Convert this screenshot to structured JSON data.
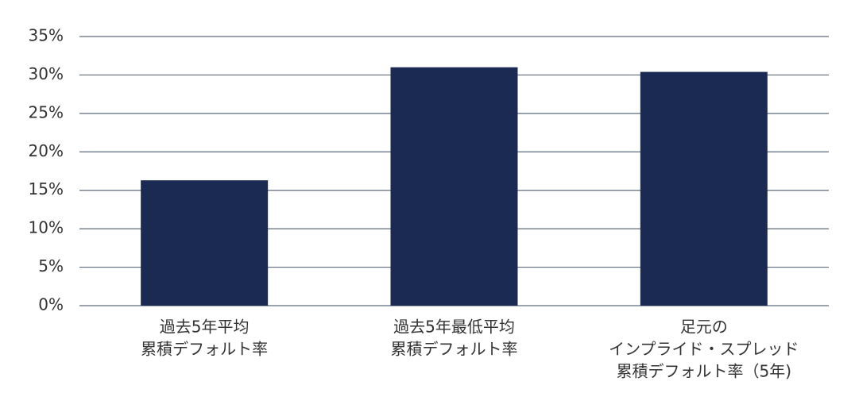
{
  "chart_data": {
    "type": "bar",
    "categories": [
      [
        "過去5年平均",
        "累積デフォルト率"
      ],
      [
        "過去5年最低平均",
        "累積デフォルト率"
      ],
      [
        "足元の",
        "インプライド・スプレッド",
        "累積デフォルト率（5年)"
      ]
    ],
    "values": [
      16.3,
      31.0,
      30.4
    ],
    "color": "#1b2a52",
    "ylim": [
      0,
      35
    ],
    "yticks": [
      {
        "value": 0,
        "label": "0%"
      },
      {
        "value": 5,
        "label": "5%"
      },
      {
        "value": 10,
        "label": "10%"
      },
      {
        "value": 15,
        "label": "15%"
      },
      {
        "value": 20,
        "label": "20%"
      },
      {
        "value": 25,
        "label": "25%"
      },
      {
        "value": 30,
        "label": "30%"
      },
      {
        "value": 35,
        "label": "35%"
      }
    ],
    "grid": true
  }
}
